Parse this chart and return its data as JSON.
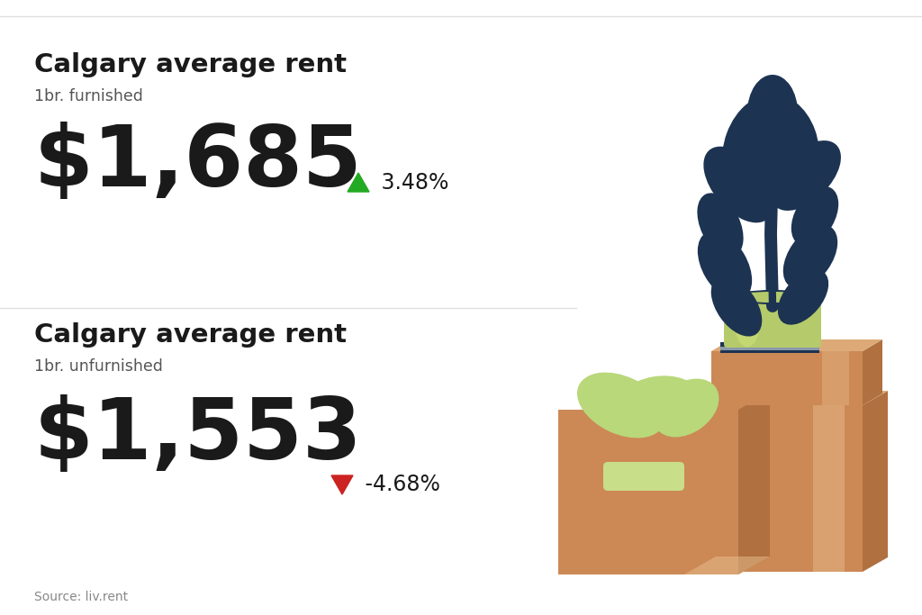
{
  "background_color": "#ffffff",
  "divider_color": "#e0e0e0",
  "title_furnished": "Calgary average rent",
  "subtitle_furnished": "1br. furnished",
  "price_furnished": "$1,685",
  "change_furnished": " 3.48%",
  "arrow_color_furnished": "#22aa22",
  "title_unfurnished": "Calgary average rent",
  "subtitle_unfurnished": "1br. unfurnished",
  "price_unfurnished": "$1,553",
  "change_unfurnished": " -4.68%",
  "arrow_color_unfurnished": "#cc2222",
  "source_text": "Source: liv.rent",
  "title_fontsize": 21,
  "subtitle_fontsize": 12.5,
  "price_fontsize": 68,
  "change_fontsize": 17,
  "source_fontsize": 10,
  "text_color": "#1a1a1a",
  "subtitle_color": "#555555",
  "source_color": "#888888",
  "leaves_color": "#1c3352",
  "pot_color": "#b5ca6a",
  "pot_shadow_color": "#98ad52",
  "pot_highlight_color": "#cee07a",
  "book_color": "#1c3352",
  "book_stripe_color": "#8899aa",
  "box_main": "#cc8855",
  "box_shadow": "#b07040",
  "box_top": "#ddaa77",
  "box_highlight": "#e8c090",
  "box_handle": "#c8de88",
  "leaf_box_color": "#b8d87a"
}
